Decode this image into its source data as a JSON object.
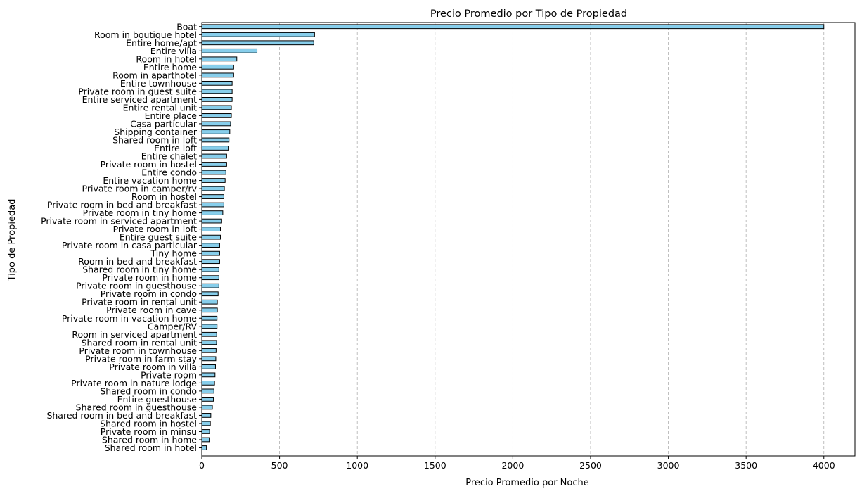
{
  "chart_data": {
    "type": "bar",
    "orientation": "horizontal",
    "title": "Precio Promedio por Tipo de Propiedad",
    "xlabel": "Precio Promedio por Noche",
    "ylabel": "Tipo de Propiedad",
    "xlim": [
      0,
      4200
    ],
    "xticks": [
      0,
      500,
      1000,
      1500,
      2000,
      2500,
      3000,
      3500,
      4000
    ],
    "grid": {
      "x": true,
      "y": false,
      "style": "dashed"
    },
    "bar_color": "#87CEEB",
    "edge_color": "#000000",
    "categories": [
      "Boat",
      "Room in boutique hotel",
      "Entire home/apt",
      "Entire villa",
      "Room in hotel",
      "Entire home",
      "Room in aparthotel",
      "Entire townhouse",
      "Private room in guest suite",
      "Entire serviced apartment",
      "Entire rental unit",
      "Entire place",
      "Casa particular",
      "Shipping container",
      "Shared room in loft",
      "Entire loft",
      "Entire chalet",
      "Private room in hostel",
      "Entire condo",
      "Entire vacation home",
      "Private room in camper/rv",
      "Room in hostel",
      "Private room in bed and breakfast",
      "Private room in tiny home",
      "Private room in serviced apartment",
      "Private room in loft",
      "Entire guest suite",
      "Private room in casa particular",
      "Tiny home",
      "Room in bed and breakfast",
      "Shared room in tiny home",
      "Private room in home",
      "Private room in guesthouse",
      "Private room in condo",
      "Private room in rental unit",
      "Private room in cave",
      "Private room in vacation home",
      "Camper/RV",
      "Room in serviced apartment",
      "Shared room in rental unit",
      "Private room in townhouse",
      "Private room in farm stay",
      "Private room in villa",
      "Private room",
      "Private room in nature lodge",
      "Shared room in condo",
      "Entire guesthouse",
      "Shared room in guesthouse",
      "Shared room in bed and breakfast",
      "Shared room in hostel",
      "Private room in minsu",
      "Shared room in home",
      "Shared room in hotel"
    ],
    "values": [
      4000,
      725,
      720,
      355,
      225,
      205,
      205,
      195,
      195,
      195,
      190,
      190,
      185,
      180,
      175,
      170,
      160,
      160,
      155,
      150,
      145,
      142,
      142,
      135,
      128,
      120,
      120,
      115,
      115,
      115,
      110,
      110,
      110,
      105,
      100,
      100,
      98,
      98,
      96,
      95,
      92,
      90,
      88,
      85,
      82,
      78,
      75,
      68,
      58,
      55,
      50,
      48,
      30
    ]
  }
}
